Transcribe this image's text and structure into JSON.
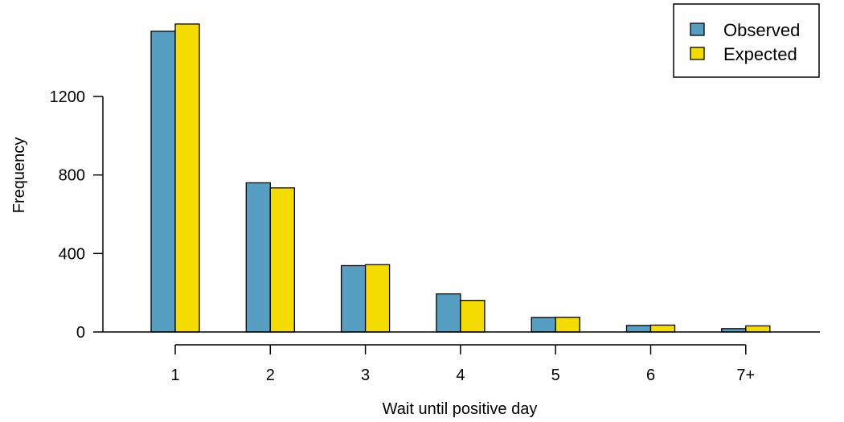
{
  "chart_data": {
    "type": "bar",
    "title": "",
    "xlabel": "Wait until positive day",
    "ylabel": "Frequency",
    "categories": [
      "1",
      "2",
      "3",
      "4",
      "5",
      "6",
      "7+"
    ],
    "series": [
      {
        "name": "Observed",
        "color": "#569ec2",
        "values": [
          1532,
          760,
          338,
          194,
          74,
          33,
          17
        ]
      },
      {
        "name": "Expected",
        "color": "#f5dc00",
        "values": [
          1569,
          734,
          343,
          161,
          75,
          35,
          31
        ]
      }
    ],
    "yticks": [
      0,
      400,
      800,
      1200
    ],
    "ylim": [
      0,
      1600
    ],
    "grid": false,
    "legend_position": "top-right"
  }
}
